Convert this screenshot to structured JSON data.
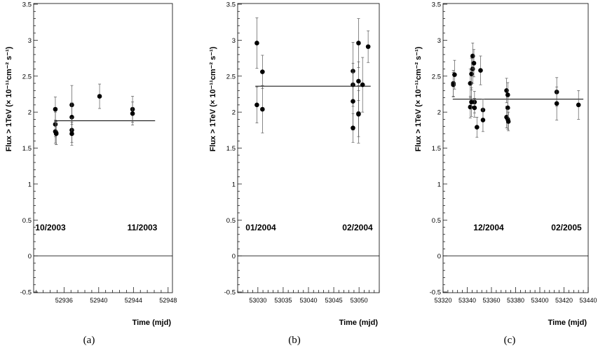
{
  "chart_data": [
    {
      "type": "scatter",
      "panel": "(a)",
      "ylabel": "Flux > 1TeV (× 10⁻¹¹cm⁻² s⁻¹)",
      "xlabel": "Time (mjd)",
      "ylim": [
        -0.5,
        3.5
      ],
      "xlim": [
        52932.5,
        52948.5
      ],
      "yticks": [
        "-0.5",
        "0",
        "0.5",
        "1",
        "1.5",
        "2",
        "2.5",
        "3",
        "3.5"
      ],
      "xticks": [
        52936,
        52940,
        52944,
        52948
      ],
      "xtick_labels": [
        "52936",
        "52940",
        "52944",
        "52948"
      ],
      "fit_level": 1.88,
      "fit_range": [
        52934.9,
        52946.5
      ],
      "annotations": [
        "10/2003",
        "11/2003"
      ],
      "points": [
        {
          "x": 52935.0,
          "y": 2.04,
          "err": 0.17
        },
        {
          "x": 52935.0,
          "y": 1.83,
          "err": 0.17
        },
        {
          "x": 52935.0,
          "y": 1.73,
          "err": 0.16
        },
        {
          "x": 52935.1,
          "y": 1.71,
          "err": 0.16
        },
        {
          "x": 52935.1,
          "y": 1.7,
          "err": 0.15
        },
        {
          "x": 52936.9,
          "y": 2.1,
          "err": 0.27
        },
        {
          "x": 52936.9,
          "y": 1.93,
          "err": 0.2
        },
        {
          "x": 52936.9,
          "y": 1.75,
          "err": 0.17
        },
        {
          "x": 52936.9,
          "y": 1.7,
          "err": 0.16
        },
        {
          "x": 52940.1,
          "y": 2.22,
          "err": 0.17
        },
        {
          "x": 52943.9,
          "y": 2.04,
          "err": 0.18
        },
        {
          "x": 52943.9,
          "y": 1.98,
          "err": 0.16
        }
      ]
    },
    {
      "type": "scatter",
      "panel": "(b)",
      "ylabel": "Flux > 1TeV (× 10⁻¹¹cm⁻² s⁻¹)",
      "xlabel": "Time (mjd)",
      "ylim": [
        -0.5,
        3.5
      ],
      "xlim": [
        53026,
        53054
      ],
      "yticks": [
        "-0.5",
        "0",
        "0.5",
        "1",
        "1.5",
        "2",
        "2.5",
        "3",
        "3.5"
      ],
      "xticks": [
        53030,
        53035,
        53040,
        53045,
        53050
      ],
      "xtick_labels": [
        "53030",
        "53035",
        "53040",
        "53045",
        "53050"
      ],
      "fit_level": 2.36,
      "fit_range": [
        53029.5,
        53052.3
      ],
      "annotations": [
        "01/2004",
        "02/2004"
      ],
      "points": [
        {
          "x": 53029.8,
          "y": 2.96,
          "err": 0.35
        },
        {
          "x": 53029.8,
          "y": 2.1,
          "err": 0.25
        },
        {
          "x": 53030.9,
          "y": 2.56,
          "err": 0.23
        },
        {
          "x": 53030.9,
          "y": 2.04,
          "err": 0.33
        },
        {
          "x": 53048.8,
          "y": 2.57,
          "err": 0.4
        },
        {
          "x": 53048.8,
          "y": 2.38,
          "err": 0.3
        },
        {
          "x": 53048.8,
          "y": 2.15,
          "err": 0.4
        },
        {
          "x": 53048.8,
          "y": 1.78,
          "err": 0.2
        },
        {
          "x": 53049.9,
          "y": 2.96,
          "err": 0.34
        },
        {
          "x": 53049.9,
          "y": 2.43,
          "err": 0.27
        },
        {
          "x": 53049.9,
          "y": 1.98,
          "err": 0.32
        },
        {
          "x": 53049.9,
          "y": 1.97,
          "err": 0.4
        },
        {
          "x": 53050.7,
          "y": 2.38,
          "err": 0.38
        },
        {
          "x": 53051.8,
          "y": 2.91,
          "err": 0.22
        }
      ]
    },
    {
      "type": "scatter",
      "panel": "(c)",
      "ylabel": "Flux > 1TeV (× 10⁻¹¹cm⁻² s⁻¹)",
      "xlabel": "Time (mjd)",
      "ylim": [
        -0.5,
        3.5
      ],
      "xlim": [
        53320,
        53440
      ],
      "yticks": [
        "-0.5",
        "0",
        "0.5",
        "1",
        "1.5",
        "2",
        "2.5",
        "3",
        "3.5"
      ],
      "xticks": [
        53320,
        53340,
        53360,
        53380,
        53400,
        53420,
        53440
      ],
      "xtick_labels": [
        "53320",
        "53340",
        "53360",
        "53380",
        "53400",
        "53420",
        "53440"
      ],
      "fit_level": 2.18,
      "fit_range": [
        53328,
        53436
      ],
      "annotations": [
        "12/2004",
        "02/2005"
      ],
      "points": [
        {
          "x": 53328.5,
          "y": 2.4,
          "err": 0.18
        },
        {
          "x": 53328.5,
          "y": 2.38,
          "err": 0.17
        },
        {
          "x": 53329.5,
          "y": 2.52,
          "err": 0.2
        },
        {
          "x": 53342.5,
          "y": 2.07,
          "err": 0.15
        },
        {
          "x": 53342.5,
          "y": 2.4,
          "err": 0.2
        },
        {
          "x": 53343.5,
          "y": 2.14,
          "err": 0.2
        },
        {
          "x": 53343.5,
          "y": 2.53,
          "err": 0.22
        },
        {
          "x": 53344.5,
          "y": 2.6,
          "err": 0.2
        },
        {
          "x": 53344.5,
          "y": 2.78,
          "err": 0.18
        },
        {
          "x": 53345.5,
          "y": 2.68,
          "err": 0.19
        },
        {
          "x": 53346.0,
          "y": 2.14,
          "err": 0.15
        },
        {
          "x": 53346.0,
          "y": 2.06,
          "err": 0.13
        },
        {
          "x": 53348.0,
          "y": 1.79,
          "err": 0.14
        },
        {
          "x": 53351.0,
          "y": 2.58,
          "err": 0.2
        },
        {
          "x": 53353.0,
          "y": 2.03,
          "err": 0.15
        },
        {
          "x": 53353.0,
          "y": 1.89,
          "err": 0.16
        },
        {
          "x": 53372.5,
          "y": 2.3,
          "err": 0.17
        },
        {
          "x": 53372.5,
          "y": 1.93,
          "err": 0.15
        },
        {
          "x": 53373.5,
          "y": 2.24,
          "err": 0.17
        },
        {
          "x": 53373.5,
          "y": 2.06,
          "err": 0.15
        },
        {
          "x": 53373.5,
          "y": 1.9,
          "err": 0.14
        },
        {
          "x": 53374.0,
          "y": 1.87,
          "err": 0.13
        },
        {
          "x": 53414.0,
          "y": 2.28,
          "err": 0.2
        },
        {
          "x": 53414.0,
          "y": 2.12,
          "err": 0.23
        },
        {
          "x": 53432.0,
          "y": 2.1,
          "err": 0.2
        }
      ]
    }
  ],
  "captions": [
    "(a)",
    "(b)",
    "(c)"
  ]
}
